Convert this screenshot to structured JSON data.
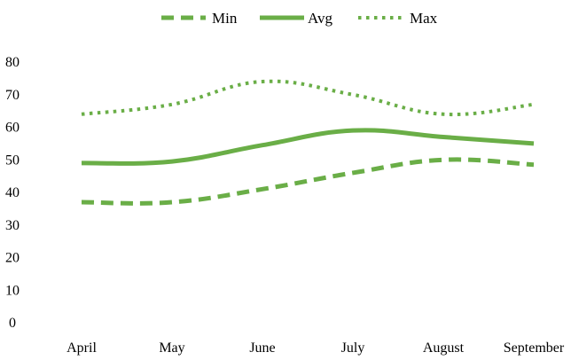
{
  "chart_data": {
    "type": "line",
    "title": "",
    "xlabel": "",
    "ylabel": "",
    "categories": [
      "April",
      "May",
      "June",
      "July",
      "August",
      "September"
    ],
    "ylim": [
      0,
      80
    ],
    "yticks": [
      0,
      10,
      20,
      30,
      40,
      50,
      60,
      70,
      80
    ],
    "grid": false,
    "smooth": true,
    "legend_position": "top-center",
    "series": [
      {
        "name": "Min",
        "style": "dashed",
        "color": "#6aae47",
        "values": [
          37,
          37,
          41,
          46,
          50,
          48.5
        ]
      },
      {
        "name": "Avg",
        "style": "solid",
        "color": "#6aae47",
        "values": [
          49,
          49.5,
          54.5,
          59,
          57,
          55
        ]
      },
      {
        "name": "Max",
        "style": "dotted",
        "color": "#6aae47",
        "values": [
          64,
          67,
          74,
          70,
          64,
          67
        ]
      }
    ]
  }
}
